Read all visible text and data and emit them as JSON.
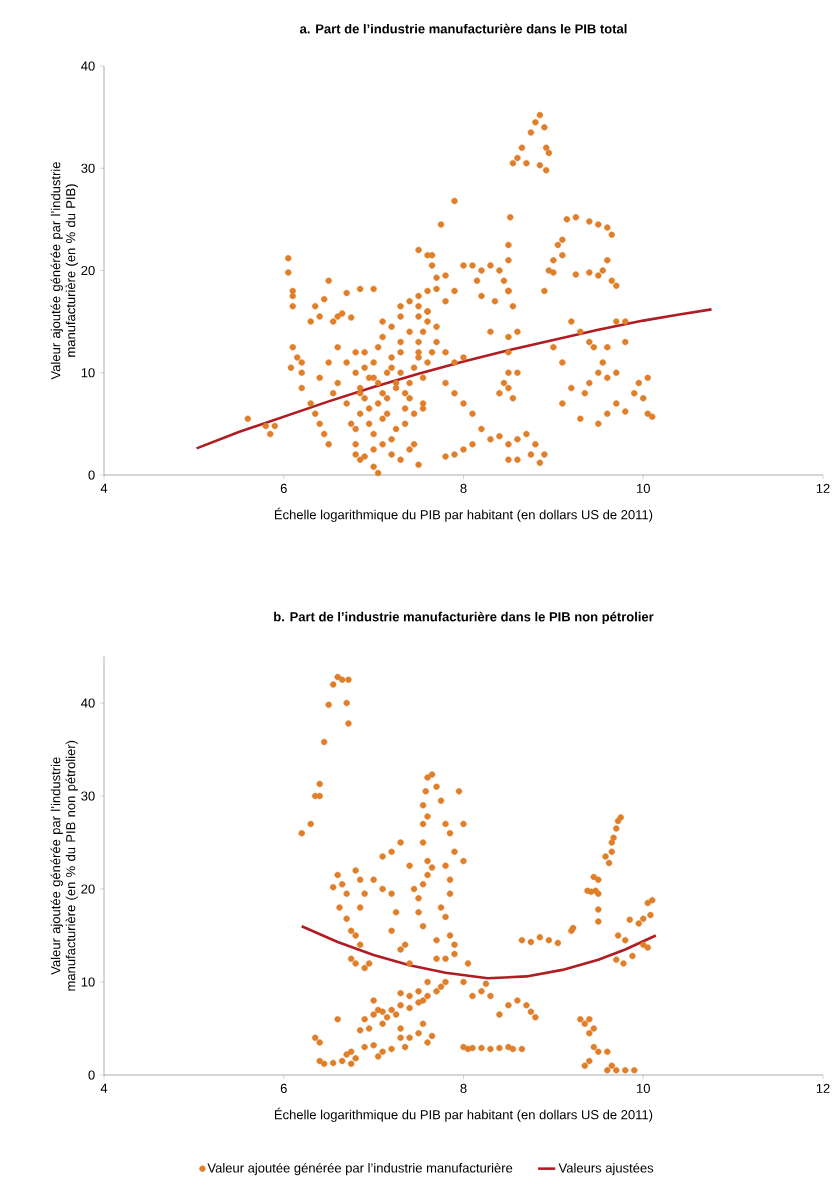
{
  "chart_data": [
    {
      "type": "scatter",
      "title": "a. Part de l’industrie manufacturière dans le PIB total",
      "xlabel": "Échelle logarithmique du PIB par habitant (en dollars US de 2011)",
      "ylabel": "Valeur ajoutée générée par l’industrie manufacturière (en % du PIB)",
      "xlim": [
        4,
        12
      ],
      "ylim": [
        0,
        40
      ],
      "xticks": [
        4,
        6,
        8,
        10,
        12
      ],
      "yticks": [
        0,
        10,
        20,
        30,
        40
      ],
      "grid": false,
      "legend": false,
      "series": [
        {
          "marker": "circle",
          "color": "#e07f2a",
          "x": [
            5.6,
            5.8,
            5.85,
            5.9,
            6.05,
            6.05,
            6.1,
            6.1,
            6.1,
            6.1,
            6.08,
            6.15,
            6.2,
            6.2,
            6.2,
            6.3,
            6.35,
            6.4,
            6.45,
            6.5,
            6.55,
            6.6,
            6.65,
            6.7,
            6.75,
            6.85,
            7.0,
            6.3,
            6.35,
            6.4,
            6.45,
            6.5,
            6.4,
            6.5,
            6.6,
            6.6,
            6.55,
            6.7,
            6.7,
            6.75,
            6.8,
            6.8,
            6.85,
            6.9,
            7.0,
            7.05,
            6.8,
            6.85,
            6.9,
            6.95,
            7.0,
            7.05,
            7.1,
            7.15,
            7.2,
            7.25,
            7.3,
            7.35,
            7.4,
            7.45,
            7.5,
            7.55,
            7.6,
            6.8,
            6.85,
            6.9,
            6.95,
            7.0,
            7.05,
            7.1,
            7.15,
            7.2,
            7.25,
            7.3,
            7.35,
            7.4,
            7.45,
            7.5,
            7.55,
            7.6,
            6.8,
            6.9,
            7.0,
            7.1,
            7.2,
            7.3,
            7.4,
            7.5,
            7.6,
            7.7,
            6.85,
            6.95,
            7.05,
            7.15,
            7.25,
            7.35,
            7.45,
            7.55,
            7.65,
            7.0,
            7.1,
            7.2,
            7.3,
            7.4,
            7.5,
            7.2,
            7.3,
            7.4,
            7.5,
            7.1,
            7.3,
            7.5,
            7.5,
            7.6,
            7.6,
            7.7,
            7.8,
            7.9,
            7.55,
            7.7,
            7.8,
            7.9,
            8.0,
            7.8,
            7.9,
            8.0,
            8.1,
            7.65,
            7.65,
            7.8,
            7.7,
            7.5,
            7.6,
            7.75,
            7.9,
            8.0,
            8.1,
            8.15,
            8.2,
            8.3,
            8.4,
            8.45,
            8.5,
            8.55,
            8.2,
            8.35,
            8.5,
            8.52,
            8.55,
            8.6,
            8.7,
            8.65,
            8.75,
            8.8,
            8.85,
            8.9,
            8.92,
            8.95,
            8.85,
            8.92,
            8.5,
            8.5,
            8.9,
            8.95,
            9.0,
            9.05,
            9.1,
            9.1,
            9.15,
            9.25,
            9.4,
            9.5,
            9.6,
            9.65,
            9.6,
            9.55,
            9.65,
            9.7,
            9.5,
            9.4,
            9.25,
            9.0,
            8.3,
            8.5,
            8.6,
            8.5,
            8.45,
            8.5,
            8.55,
            8.6,
            8.5,
            8.4,
            8.2,
            8.3,
            8.1,
            8.0,
            7.9,
            7.8,
            8.4,
            8.5,
            8.6,
            8.7,
            8.75,
            8.8,
            8.9,
            8.85,
            8.6,
            8.5,
            9.0,
            9.1,
            9.2,
            9.3,
            9.5,
            9.6,
            9.7,
            9.4,
            9.35,
            9.2,
            9.1,
            9.3,
            9.5,
            9.6,
            9.7,
            9.8,
            9.9,
            10.0,
            10.05,
            10.1,
            9.95,
            10.05,
            9.8,
            9.7,
            9.8,
            9.55,
            9.45,
            9.4,
            9.6
          ],
          "values": [
            5.5,
            4.8,
            4.0,
            4.8,
            21.2,
            19.8,
            18.0,
            17.5,
            16.5,
            12.5,
            10.5,
            11.5,
            11.0,
            8.5,
            10.0,
            15.0,
            16.5,
            15.5,
            17.2,
            19.0,
            15.0,
            15.5,
            15.8,
            17.8,
            15.4,
            18.2,
            18.2,
            7.0,
            6.0,
            5.0,
            4.0,
            3.0,
            9.5,
            11.0,
            9.0,
            12.5,
            8.0,
            11.0,
            7.0,
            5.0,
            3.0,
            2.0,
            1.5,
            1.8,
            0.8,
            0.2,
            10.0,
            8.5,
            12.0,
            6.5,
            11.0,
            9.0,
            13.5,
            7.5,
            10.5,
            4.5,
            12.0,
            8.0,
            14.0,
            6.0,
            11.5,
            9.5,
            15.0,
            4.5,
            6.0,
            7.5,
            9.5,
            4.0,
            12.5,
            5.5,
            10.0,
            3.5,
            8.5,
            13.0,
            6.5,
            9.0,
            3.0,
            12.0,
            7.0,
            16.0,
            12.0,
            10.5,
            9.5,
            8.0,
            11.5,
            10.0,
            7.5,
            13.0,
            11.0,
            14.5,
            8.0,
            5.0,
            7.0,
            6.0,
            9.0,
            5.0,
            10.5,
            6.5,
            12.0,
            2.5,
            3.0,
            2.0,
            1.5,
            2.5,
            1.0,
            14.5,
            16.5,
            17.0,
            15.5,
            15.0,
            15.5,
            16.5,
            17.5,
            16.0,
            18.0,
            18.2,
            17.0,
            18.0,
            14.0,
            13.0,
            12.0,
            11.0,
            11.5,
            9.0,
            8.0,
            7.0,
            6.0,
            20.5,
            21.5,
            19.5,
            19.3,
            22.0,
            21.5,
            24.5,
            26.8,
            20.5,
            20.5,
            19.0,
            20.0,
            20.5,
            20.0,
            19.0,
            18.0,
            16.5,
            17.5,
            17.0,
            22.5,
            25.2,
            30.5,
            31.0,
            30.5,
            32.0,
            33.5,
            34.5,
            35.2,
            34.0,
            32.0,
            31.5,
            30.3,
            29.8,
            21.0,
            18.0,
            18.0,
            20.0,
            21.0,
            22.5,
            23.0,
            21.5,
            25.0,
            25.2,
            24.8,
            24.5,
            24.2,
            23.5,
            21.0,
            20.0,
            19.0,
            18.5,
            19.5,
            19.8,
            19.6,
            19.8,
            14.0,
            13.5,
            14.0,
            12.0,
            9.0,
            8.5,
            7.5,
            10.0,
            10.0,
            8.0,
            4.5,
            3.5,
            3.0,
            2.5,
            2.0,
            1.8,
            3.8,
            3.0,
            3.5,
            4.0,
            2.0,
            3.0,
            2.0,
            1.2,
            1.5,
            1.5,
            12.5,
            11.0,
            15.0,
            14.0,
            10.0,
            9.5,
            10.0,
            9.0,
            8.0,
            8.5,
            7.0,
            5.5,
            5.0,
            6.0,
            7.0,
            6.2,
            8.0,
            7.5,
            6.0,
            5.7,
            9.0,
            9.5,
            13.0,
            15.0,
            15.0,
            11.0,
            12.5,
            13.0,
            12.5
          ]
        },
        {
          "type": "line",
          "color": "#b01c22",
          "x": [
            5.03,
            5.5,
            6.0,
            6.5,
            7.0,
            7.5,
            8.0,
            8.5,
            9.0,
            9.5,
            10.0,
            10.4,
            10.76
          ],
          "values": [
            2.6,
            4.2,
            5.7,
            7.2,
            8.6,
            9.9,
            11.1,
            12.2,
            13.2,
            14.2,
            15.1,
            15.7,
            16.2
          ]
        }
      ]
    },
    {
      "type": "scatter",
      "title": "b. Part de l’industrie manufacturière dans le PIB non pétrolier",
      "xlabel": "Échelle logarithmique du PIB par habitant (en dollars US de 2011)",
      "ylabel": "Valeur ajoutée générée par l’industrie manufacturière (en % du PIB non pétrolier)",
      "xlim": [
        4,
        12
      ],
      "ylim": [
        0,
        45
      ],
      "xticks": [
        4,
        6,
        8,
        10,
        12
      ],
      "yticks": [
        0,
        10,
        20,
        30,
        40
      ],
      "grid": false,
      "legend": "bottom",
      "series": [
        {
          "marker": "circle",
          "name": "Valeur ajoutée générée par l’industrie manufacturière",
          "color": "#e07f2a",
          "x": [
            6.2,
            6.3,
            6.35,
            6.4,
            6.4,
            6.45,
            6.5,
            6.55,
            6.6,
            6.65,
            6.72,
            6.7,
            6.72,
            6.35,
            6.4,
            6.4,
            6.45,
            6.55,
            6.6,
            6.55,
            6.6,
            6.65,
            6.7,
            6.62,
            6.7,
            6.75,
            6.8,
            6.85,
            6.85,
            6.9,
            6.85,
            6.8,
            6.75,
            6.8,
            6.9,
            6.95,
            6.7,
            6.75,
            6.8,
            6.65,
            6.75,
            6.9,
            7.0,
            7.05,
            7.1,
            7.2,
            7.3,
            7.35,
            6.9,
            7.0,
            7.05,
            7.1,
            7.15,
            7.2,
            7.25,
            7.3,
            7.4,
            7.5,
            7.55,
            7.6,
            7.7,
            7.75,
            7.8,
            7.4,
            7.5,
            7.3,
            7.6,
            7.0,
            6.95,
            6.85,
            7.1,
            7.3,
            7.4,
            7.5,
            7.55,
            7.6,
            7.65,
            7.1,
            7.2,
            7.3,
            7.0,
            7.1,
            7.2,
            7.25,
            7.2,
            7.3,
            7.35,
            7.4,
            7.4,
            7.45,
            7.5,
            7.5,
            7.55,
            7.55,
            7.6,
            7.65,
            7.55,
            7.6,
            7.55,
            7.58,
            7.6,
            7.65,
            7.7,
            7.75,
            7.6,
            7.55,
            7.8,
            7.85,
            7.9,
            7.95,
            8.0,
            8.0,
            7.8,
            7.85,
            7.85,
            7.75,
            7.8,
            7.85,
            7.9,
            7.7,
            7.7,
            7.8,
            7.9,
            8.05,
            8.0,
            8.0,
            8.05,
            8.1,
            8.2,
            8.3,
            8.4,
            8.5,
            8.55,
            8.65,
            8.1,
            8.2,
            8.3,
            8.4,
            8.5,
            8.6,
            8.7,
            8.75,
            8.8,
            8.25,
            8.65,
            8.75,
            8.85,
            8.95,
            9.05,
            9.2,
            9.22,
            9.38,
            9.42,
            9.47,
            9.5,
            9.45,
            9.5,
            9.5,
            9.5,
            9.58,
            9.65,
            9.62,
            9.65,
            9.67,
            9.7,
            9.72,
            9.75,
            9.3,
            9.35,
            9.45,
            9.4,
            9.4,
            9.45,
            9.35,
            9.4,
            9.5,
            9.6,
            9.65,
            9.7,
            9.8,
            9.9,
            9.6,
            9.72,
            9.8,
            9.85,
            9.95,
            10.0,
            10.05,
            10.1,
            10.08,
            10.0,
            10.05,
            9.78,
            9.88,
            9.7
          ],
          "values": [
            26.0,
            27.0,
            30.0,
            30.0,
            31.3,
            35.8,
            39.8,
            42.0,
            42.8,
            42.5,
            42.5,
            40.0,
            37.8,
            4.0,
            3.5,
            1.5,
            1.2,
            1.3,
            6.0,
            20.2,
            21.5,
            20.5,
            19.5,
            18.0,
            16.8,
            15.5,
            15.0,
            14.0,
            18.0,
            19.5,
            21.0,
            22.0,
            12.5,
            12.0,
            11.5,
            12.0,
            2.2,
            2.5,
            1.8,
            1.5,
            1.2,
            3.0,
            3.2,
            2.0,
            2.5,
            2.8,
            4.0,
            3.0,
            6.0,
            6.5,
            7.0,
            6.8,
            6.2,
            7.0,
            6.5,
            7.5,
            7.2,
            7.8,
            8.0,
            8.5,
            9.0,
            9.5,
            10.0,
            8.5,
            9.0,
            8.8,
            10.0,
            8.0,
            5.0,
            4.8,
            5.5,
            5.0,
            4.0,
            4.5,
            5.5,
            3.5,
            4.2,
            23.5,
            24.0,
            25.0,
            21.0,
            20.0,
            19.5,
            17.5,
            15.5,
            13.5,
            14.0,
            12.0,
            22.5,
            20.0,
            19.0,
            17.5,
            16.0,
            20.5,
            21.5,
            22.3,
            25.0,
            23.0,
            29.0,
            30.5,
            32.0,
            32.3,
            31.0,
            29.5,
            27.8,
            27.0,
            27.0,
            26.0,
            24.0,
            30.5,
            27.0,
            23.0,
            22.5,
            21.0,
            19.5,
            18.0,
            17.0,
            15.0,
            14.0,
            14.5,
            12.5,
            12.5,
            13.0,
            12.0,
            10.0,
            3.0,
            2.8,
            2.9,
            2.9,
            2.8,
            2.9,
            3.0,
            2.8,
            2.8,
            8.5,
            9.0,
            8.5,
            6.5,
            7.5,
            8.0,
            7.5,
            6.8,
            6.2,
            9.8,
            14.5,
            14.3,
            14.8,
            14.5,
            14.2,
            15.5,
            15.8,
            19.8,
            19.7,
            19.8,
            19.5,
            21.3,
            21.0,
            17.8,
            16.5,
            23.5,
            24.0,
            22.8,
            25.0,
            25.5,
            26.5,
            27.3,
            27.7,
            6.0,
            5.5,
            5.0,
            6.0,
            4.5,
            3.0,
            1.0,
            1.5,
            2.5,
            2.5,
            1.0,
            0.5,
            0.5,
            0.5,
            0.5,
            15.0,
            14.5,
            16.7,
            16.3,
            16.8,
            18.5,
            18.8,
            17.2,
            14.0,
            13.7,
            12.0,
            12.8,
            12.4
          ]
        },
        {
          "type": "line",
          "name": "Valeurs ajustées",
          "color": "#b01c22",
          "x": [
            6.2,
            6.6,
            7.0,
            7.4,
            7.8,
            8.27,
            8.7,
            9.1,
            9.5,
            9.8,
            10.14
          ],
          "values": [
            16.0,
            14.3,
            12.9,
            11.8,
            11.0,
            10.4,
            10.6,
            11.3,
            12.4,
            13.5,
            15.0
          ]
        }
      ]
    }
  ]
}
